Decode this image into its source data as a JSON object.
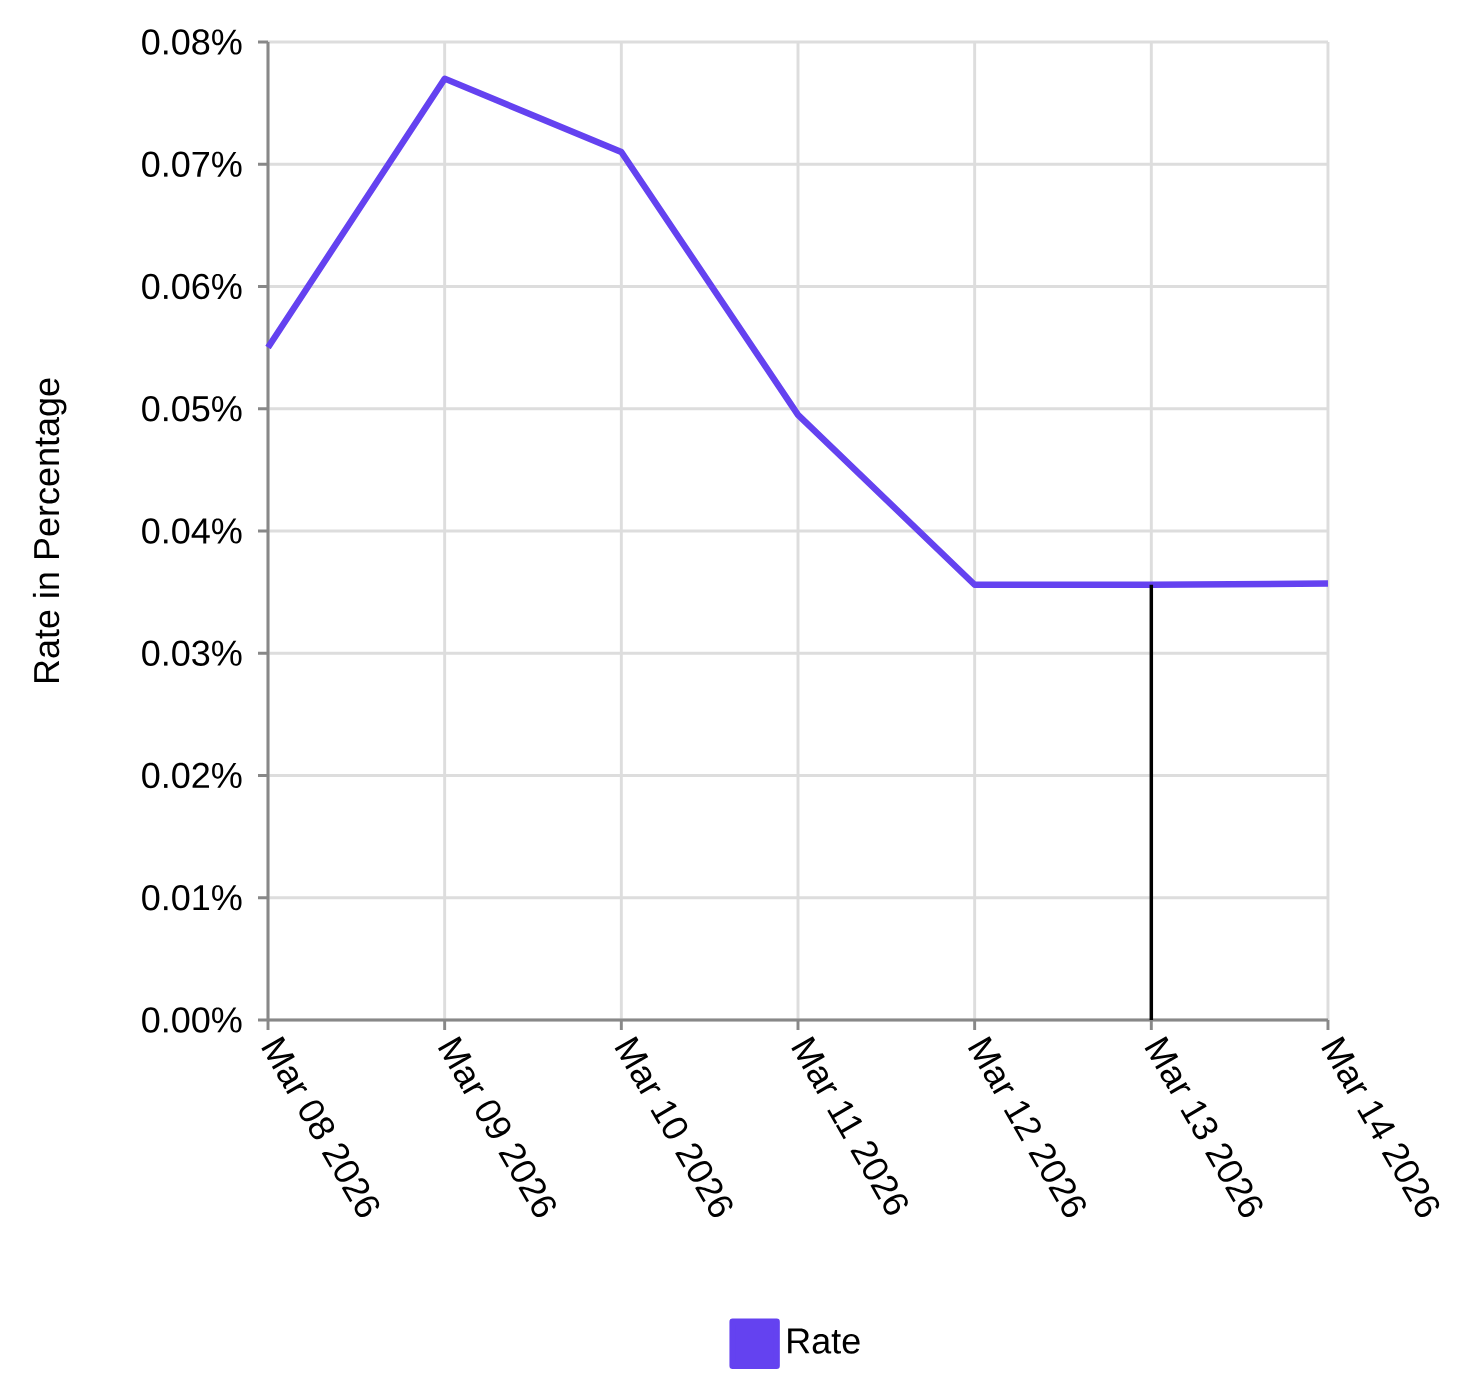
{
  "chart_data": {
    "type": "line",
    "ylabel": "Rate in Percentage",
    "x": [
      "2026-03-08",
      "2026-03-09",
      "2026-03-10",
      "2026-03-11",
      "2026-03-12",
      "2026-03-13",
      "2026-03-14"
    ],
    "series": [
      {
        "name": "Rate",
        "color": "#6442f0",
        "values": [
          0.055,
          0.077,
          0.071,
          0.0495,
          0.0356,
          0.0356,
          0.0357
        ]
      }
    ],
    "xlim": [
      "2026-03-08",
      "2026-03-14"
    ],
    "xticks": [
      {
        "value": "2026-03-08",
        "label": "Mar 08 2026"
      },
      {
        "value": "2026-03-09",
        "label": "Mar 09 2026"
      },
      {
        "value": "2026-03-10",
        "label": "Mar 10 2026"
      },
      {
        "value": "2026-03-11",
        "label": "Mar 11 2026"
      },
      {
        "value": "2026-03-12",
        "label": "Mar 12 2026"
      },
      {
        "value": "2026-03-13",
        "label": "Mar 13 2026"
      },
      {
        "value": "2026-03-14",
        "label": "Mar 14 2026"
      }
    ],
    "ylim": [
      0,
      0.08
    ],
    "yticks": [
      {
        "value": 0,
        "label": "0.00%"
      },
      {
        "value": 0.01,
        "label": "0.01%"
      },
      {
        "value": 0.02,
        "label": "0.02%"
      },
      {
        "value": 0.03,
        "label": "0.03%"
      },
      {
        "value": 0.04,
        "label": "0.04%"
      },
      {
        "value": 0.05,
        "label": "0.05%"
      },
      {
        "value": 0.06,
        "label": "0.06%"
      },
      {
        "value": 0.07,
        "label": "0.07%"
      },
      {
        "value": 0.08,
        "label": "0.08%"
      }
    ],
    "grid": true,
    "legend": "bottom",
    "ref_lines": [
      {
        "axis": "x",
        "value": "2026-03-13",
        "color": "#000000"
      }
    ]
  }
}
